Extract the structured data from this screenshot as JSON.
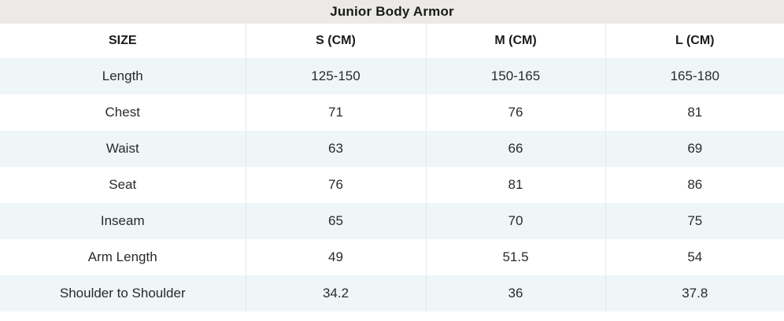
{
  "table": {
    "title": "Junior Body Armor",
    "headers": [
      "SIZE",
      "S (CM)",
      "M (CM)",
      "L (CM)"
    ],
    "rows": [
      {
        "label": "Length",
        "values": [
          "125-150",
          "150-165",
          "165-180"
        ]
      },
      {
        "label": "Chest",
        "values": [
          "71",
          "76",
          "81"
        ]
      },
      {
        "label": "Waist",
        "values": [
          "63",
          "66",
          "69"
        ]
      },
      {
        "label": "Seat",
        "values": [
          "76",
          "81",
          "86"
        ]
      },
      {
        "label": "Inseam",
        "values": [
          "65",
          "70",
          "75"
        ]
      },
      {
        "label": "Arm Length",
        "values": [
          "49",
          "51.5",
          "54"
        ]
      },
      {
        "label": "Shoulder to Shoulder",
        "values": [
          "34.2",
          "36",
          "37.8"
        ]
      }
    ]
  },
  "colors": {
    "title_background": "#eceae6",
    "stripe_background": "#eef6f8",
    "text": "#222222"
  }
}
